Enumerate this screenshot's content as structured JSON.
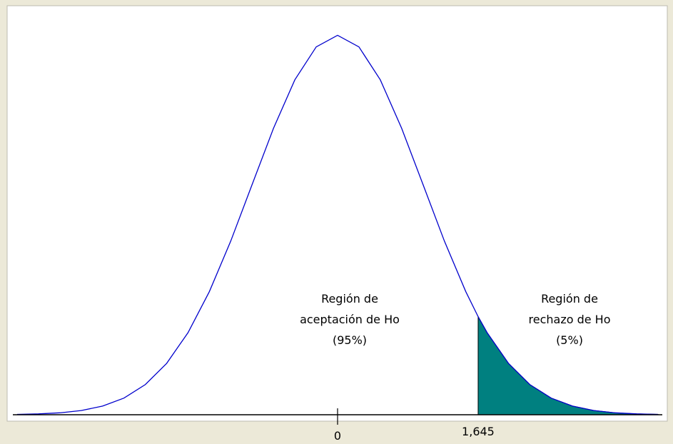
{
  "chart_data": {
    "type": "density",
    "x": [
      -3.75,
      -3.5,
      -3.25,
      -3,
      -2.75,
      -2.5,
      -2.25,
      -2,
      -1.75,
      -1.5,
      -1.25,
      -1,
      -0.75,
      -0.5,
      -0.25,
      0,
      0.25,
      0.5,
      0.75,
      1,
      1.25,
      1.5,
      1.645,
      1.75,
      2,
      2.25,
      2.5,
      2.75,
      3,
      3.25,
      3.5,
      3.75
    ],
    "series": [
      {
        "color": "#0000cc",
        "shade_color": "#008080",
        "values": [
          0.0004,
          0.0009,
          0.002,
          0.0044,
          0.0091,
          0.0175,
          0.0317,
          0.054,
          0.0863,
          0.1295,
          0.1826,
          0.242,
          0.3011,
          0.3521,
          0.3867,
          0.3989,
          0.3867,
          0.3521,
          0.3011,
          0.242,
          0.1826,
          0.1295,
          0.1031,
          0.0863,
          0.054,
          0.0317,
          0.0175,
          0.0091,
          0.0044,
          0.002,
          0.0009,
          0.0004
        ]
      }
    ],
    "xlim": [
      -3.8,
      3.8
    ],
    "ylim": [
      0,
      0.43
    ],
    "xticks": [
      0,
      {
        "value": 1.645,
        "label": "1,645"
      }
    ],
    "annotations": [
      {
        "lines": [
          "Región de",
          "aceptación de Ho",
          "(95%)"
        ]
      },
      {
        "lines": [
          "Región de",
          "rechazo de Ho",
          "(5%)"
        ]
      }
    ]
  }
}
